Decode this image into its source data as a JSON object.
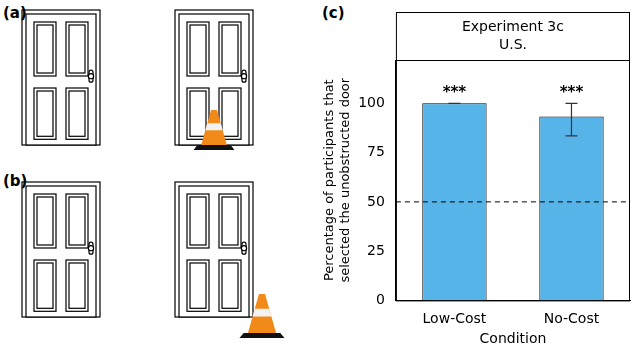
{
  "panel_labels": [
    "(a)",
    "(b)",
    "(c)"
  ],
  "chart_data": {
    "type": "bar",
    "title": "Experiment 3c",
    "subtitle": "U.S.",
    "categories": [
      "Low-Cost",
      "No-Cost"
    ],
    "values": [
      100,
      93.3
    ],
    "error_low": [
      100,
      83.5
    ],
    "error_high": [
      100,
      100
    ],
    "significance": [
      "***",
      "***"
    ],
    "reference_line": 50,
    "color": "#56b4e9",
    "x_label": "Condition",
    "y_label": "Percentage of participants that selected the unobstructed door",
    "ylim": [
      0,
      122
    ],
    "yticks": [
      0,
      25,
      50,
      75,
      100
    ],
    "grid": false
  }
}
